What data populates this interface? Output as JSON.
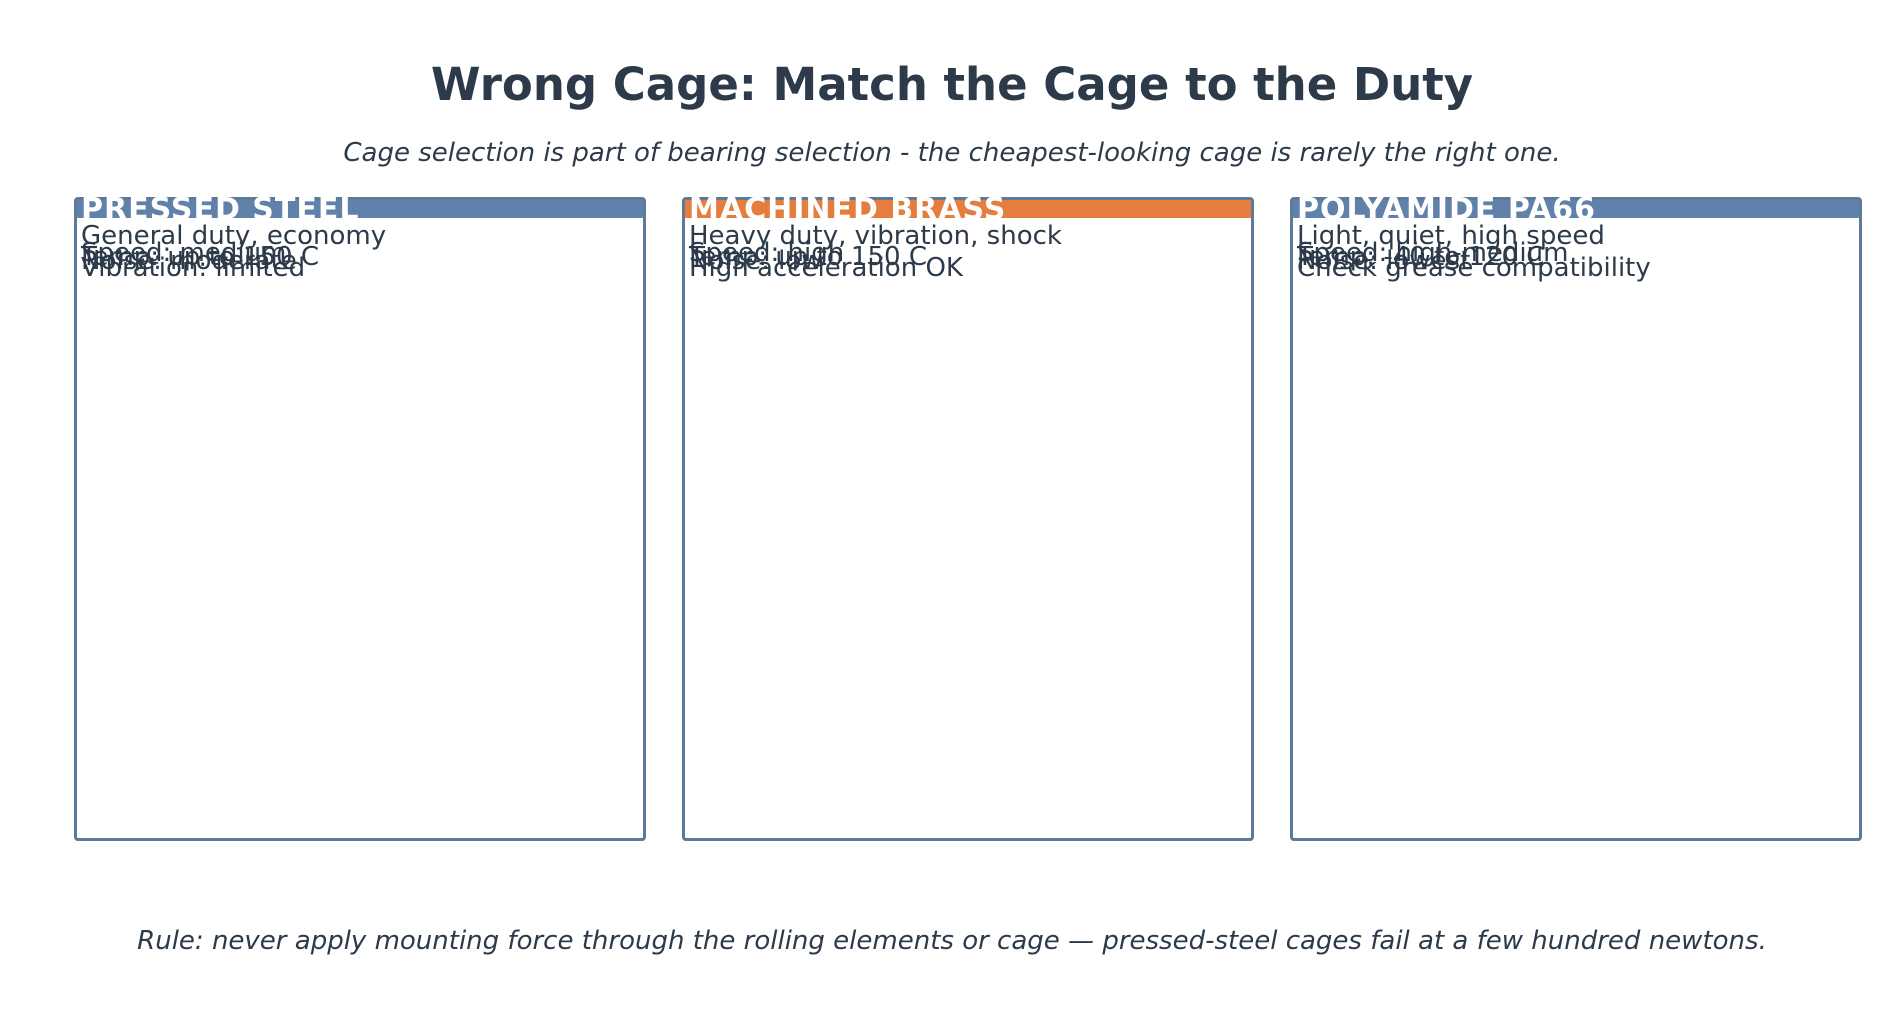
{
  "title": "Wrong Cage: Match the Cage to the Duty",
  "subtitle": "Cage selection is part of bearing selection - the cheapest-looking cage is rarely the right one.",
  "panels": [
    {
      "name": "PRESSED STEEL",
      "header_color": "#5f81aa",
      "lines": [
        "General duty, economy",
        "Speed: medium",
        "Temp: up to 150 C",
        "Noise: moderate",
        "Vibration: limited"
      ]
    },
    {
      "name": "MACHINED BRASS",
      "header_color": "#e57d3e",
      "lines": [
        "Heavy duty, vibration, shock",
        "Speed: high",
        "Temp: up to 150 C",
        "Noise: low",
        "High acceleration OK"
      ]
    },
    {
      "name": "POLYAMIDE PA66",
      "header_color": "#5f81aa",
      "lines": [
        "Light, quiet, high speed",
        "Speed: high-medium",
        "Temp: -40 to 120 C",
        "Noise: lowest",
        "Check grease compatibility"
      ]
    }
  ],
  "footer": "Rule: never apply mounting force through the rolling elements or cage — pressed-steel cages fail at a few hundred newtons."
}
